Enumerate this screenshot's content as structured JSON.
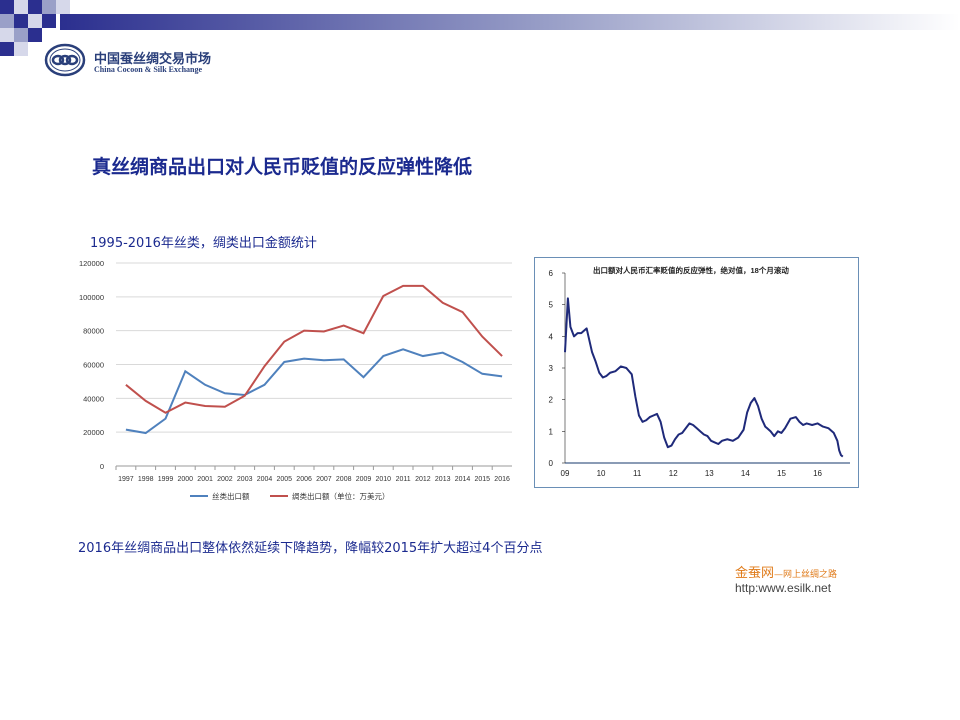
{
  "header": {
    "logo_cn": "中国蚕丝绸交易市场",
    "logo_en": "China Cocoon & Silk Exchange"
  },
  "slide": {
    "title": "真丝绸商品出口对人民币贬值的反应弹性降低",
    "chart1_caption": "1995-2016年丝类，绸类出口金额统计",
    "bottom_note": "2016年丝绸商品出口整体依然延续下降趋势，降幅较2015年扩大超过4个百分点"
  },
  "watermark": {
    "brand": "金蚕网",
    "tagline": "—网上丝绸之路",
    "url": "http:www.esilk.net"
  },
  "colors": {
    "title_blue": "#1b2a8f",
    "silk_series": "#4f81bd",
    "fabric_series": "#c0504d",
    "elasticity_line": "#1f2a7a"
  },
  "chart_data": [
    {
      "type": "line",
      "title": "",
      "x": [
        "1997",
        "1998",
        "1999",
        "2000",
        "2001",
        "2002",
        "2003",
        "2004",
        "2005",
        "2006",
        "2007",
        "2008",
        "2009",
        "2010",
        "2011",
        "2012",
        "2013",
        "2014",
        "2015",
        "2016"
      ],
      "series": [
        {
          "name": "丝类出口额",
          "values": [
            21500,
            19500,
            28000,
            56000,
            48000,
            43000,
            42000,
            48000,
            61500,
            63500,
            62500,
            63000,
            52500,
            65000,
            69000,
            65000,
            67000,
            61500,
            54500,
            53000
          ]
        },
        {
          "name": "绸类出口额（单位：万美元）",
          "values": [
            48000,
            38500,
            31500,
            37500,
            35500,
            35000,
            41500,
            59000,
            73500,
            80000,
            79500,
            83000,
            78500,
            100500,
            106500,
            106500,
            96500,
            91000,
            76500,
            65000
          ]
        }
      ],
      "ylim": [
        0,
        120000
      ],
      "yticks": [
        0,
        20000,
        40000,
        60000,
        80000,
        100000,
        120000
      ],
      "grid": true,
      "legend_position": "bottom"
    },
    {
      "type": "line",
      "title": "出口额对人民币汇率贬值的反应弹性，绝对值，18个月滚动",
      "x_tick_labels": [
        "09",
        "10",
        "11",
        "12",
        "13",
        "14",
        "15",
        "16"
      ],
      "x_tick_positions": [
        2009,
        2010,
        2011,
        2012,
        2013,
        2014,
        2015,
        2016
      ],
      "xlim": [
        2009,
        2016.9
      ],
      "ylim": [
        0,
        6
      ],
      "yticks": [
        0,
        1,
        2,
        3,
        4,
        5,
        6
      ],
      "grid": false,
      "series": [
        {
          "x": [
            2009.0,
            2009.08,
            2009.15,
            2009.25,
            2009.35,
            2009.45,
            2009.6,
            2009.75,
            2009.85,
            2009.95,
            2010.05,
            2010.15,
            2010.25,
            2010.4,
            2010.55,
            2010.7,
            2010.85,
            2010.95,
            2011.05,
            2011.15,
            2011.25,
            2011.35,
            2011.45,
            2011.55,
            2011.65,
            2011.75,
            2011.85,
            2011.95,
            2012.05,
            2012.15,
            2012.25,
            2012.35,
            2012.45,
            2012.55,
            2012.65,
            2012.75,
            2012.85,
            2012.95,
            2013.05,
            2013.15,
            2013.25,
            2013.35,
            2013.5,
            2013.65,
            2013.8,
            2013.95,
            2014.05,
            2014.15,
            2014.25,
            2014.35,
            2014.45,
            2014.55,
            2014.6,
            2014.7,
            2014.8,
            2014.9,
            2015.0,
            2015.1,
            2015.25,
            2015.4,
            2015.5,
            2015.6,
            2015.7,
            2015.85,
            2016.0,
            2016.15,
            2016.3,
            2016.45,
            2016.55,
            2016.6,
            2016.65,
            2016.7
          ],
          "values": [
            3.5,
            5.2,
            4.3,
            4.0,
            4.1,
            4.1,
            4.25,
            3.5,
            3.2,
            2.85,
            2.7,
            2.75,
            2.85,
            2.9,
            3.05,
            3.0,
            2.8,
            2.1,
            1.5,
            1.3,
            1.35,
            1.45,
            1.5,
            1.55,
            1.3,
            0.8,
            0.5,
            0.55,
            0.75,
            0.9,
            0.95,
            1.1,
            1.25,
            1.2,
            1.1,
            1.0,
            0.9,
            0.85,
            0.7,
            0.65,
            0.6,
            0.7,
            0.75,
            0.7,
            0.8,
            1.05,
            1.6,
            1.9,
            2.05,
            1.8,
            1.4,
            1.15,
            1.1,
            1.0,
            0.85,
            1.0,
            0.95,
            1.1,
            1.4,
            1.45,
            1.3,
            1.2,
            1.25,
            1.2,
            1.25,
            1.15,
            1.1,
            0.95,
            0.7,
            0.4,
            0.25,
            0.2
          ]
        }
      ]
    }
  ]
}
